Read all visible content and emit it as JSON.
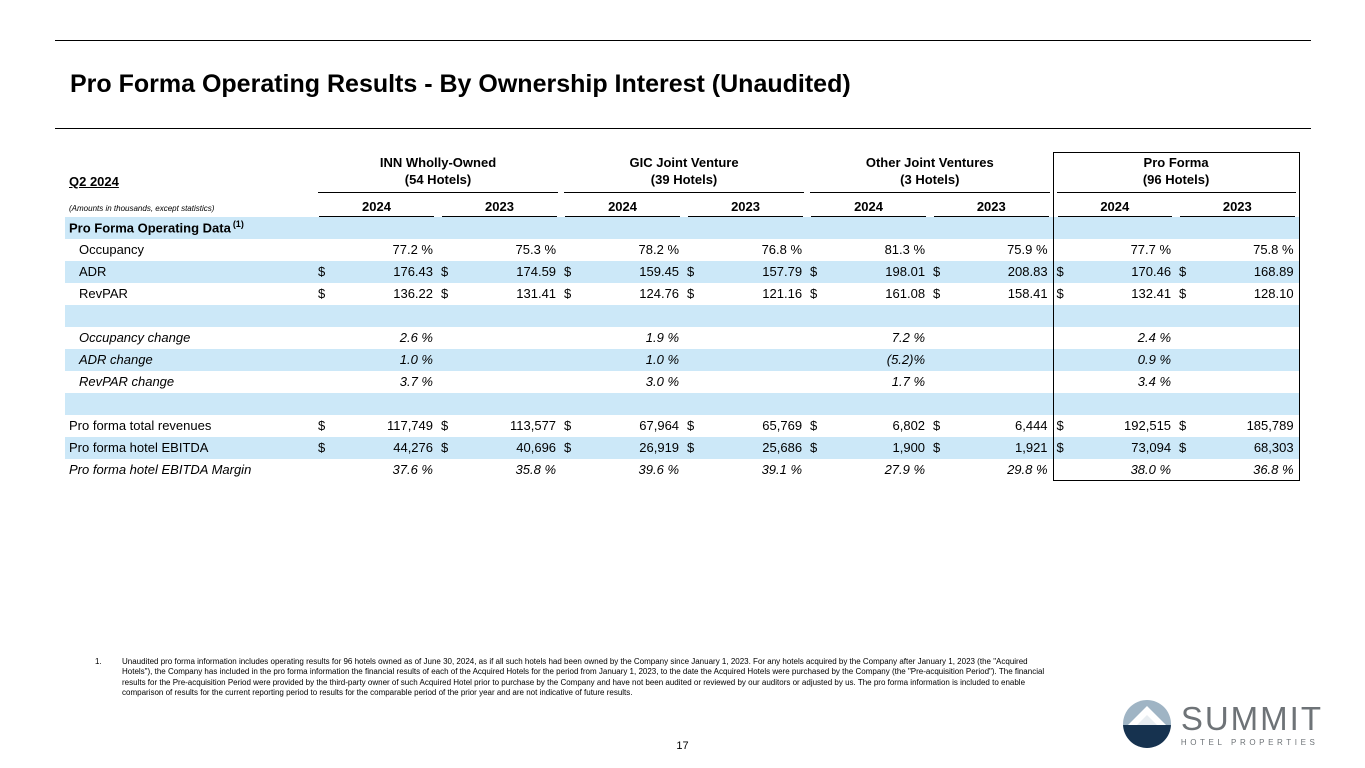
{
  "page": {
    "title": "Pro Forma Operating Results - By Ownership Interest (Unaudited)",
    "page_number": "17"
  },
  "table": {
    "period_label": "Q2 2024",
    "amounts_note": "(Amounts in thousands, except statistics)",
    "groups": [
      {
        "name": "INN Wholly-Owned",
        "hotels": "(54 Hotels)"
      },
      {
        "name": "GIC Joint Venture",
        "hotels": "(39 Hotels)"
      },
      {
        "name": "Other Joint Ventures",
        "hotels": "(3 Hotels)"
      },
      {
        "name": "Pro Forma",
        "hotels": "(96 Hotels)"
      }
    ],
    "years": [
      "2024",
      "2023",
      "2024",
      "2023",
      "2024",
      "2023",
      "2024",
      "2023"
    ],
    "shaded_row_color": "#cce8f8",
    "rows": [
      {
        "label": "Pro Forma Operating Data",
        "sup": "(1)",
        "bold": true,
        "shaded": true,
        "cells": [
          [
            "",
            ""
          ],
          [
            "",
            ""
          ],
          [
            "",
            ""
          ],
          [
            "",
            ""
          ],
          [
            "",
            ""
          ],
          [
            "",
            ""
          ],
          [
            "",
            ""
          ],
          [
            "",
            ""
          ]
        ]
      },
      {
        "label": "Occupancy",
        "indent": true,
        "shaded": false,
        "cells": [
          [
            "",
            "77.2 %"
          ],
          [
            "",
            "75.3 %"
          ],
          [
            "",
            "78.2 %"
          ],
          [
            "",
            "76.8 %"
          ],
          [
            "",
            "81.3 %"
          ],
          [
            "",
            "75.9 %"
          ],
          [
            "",
            "77.7 %"
          ],
          [
            "",
            "75.8 %"
          ]
        ]
      },
      {
        "label": "ADR",
        "indent": true,
        "shaded": true,
        "cells": [
          [
            "$",
            "176.43"
          ],
          [
            "$",
            "174.59"
          ],
          [
            "$",
            "159.45"
          ],
          [
            "$",
            "157.79"
          ],
          [
            "$",
            "198.01"
          ],
          [
            "$",
            "208.83"
          ],
          [
            "$",
            "170.46"
          ],
          [
            "$",
            "168.89"
          ]
        ]
      },
      {
        "label": "RevPAR",
        "indent": true,
        "shaded": false,
        "cells": [
          [
            "$",
            "136.22"
          ],
          [
            "$",
            "131.41"
          ],
          [
            "$",
            "124.76"
          ],
          [
            "$",
            "121.16"
          ],
          [
            "$",
            "161.08"
          ],
          [
            "$",
            "158.41"
          ],
          [
            "$",
            "132.41"
          ],
          [
            "$",
            "128.10"
          ]
        ]
      },
      {
        "label": "",
        "shaded": true,
        "cells": [
          [
            "",
            ""
          ],
          [
            "",
            ""
          ],
          [
            "",
            ""
          ],
          [
            "",
            ""
          ],
          [
            "",
            ""
          ],
          [
            "",
            ""
          ],
          [
            "",
            ""
          ],
          [
            "",
            ""
          ]
        ]
      },
      {
        "label": "Occupancy change",
        "indent": true,
        "italic": true,
        "shaded": false,
        "cells": [
          [
            "",
            "2.6 %"
          ],
          [
            "",
            ""
          ],
          [
            "",
            "1.9 %"
          ],
          [
            "",
            ""
          ],
          [
            "",
            "7.2 %"
          ],
          [
            "",
            ""
          ],
          [
            "",
            "2.4 %"
          ],
          [
            "",
            ""
          ]
        ]
      },
      {
        "label": "ADR change",
        "indent": true,
        "italic": true,
        "shaded": true,
        "cells": [
          [
            "",
            "1.0 %"
          ],
          [
            "",
            ""
          ],
          [
            "",
            "1.0 %"
          ],
          [
            "",
            ""
          ],
          [
            "",
            "(5.2)%"
          ],
          [
            "",
            ""
          ],
          [
            "",
            "0.9 %"
          ],
          [
            "",
            ""
          ]
        ]
      },
      {
        "label": "RevPAR change",
        "indent": true,
        "italic": true,
        "shaded": false,
        "cells": [
          [
            "",
            "3.7 %"
          ],
          [
            "",
            ""
          ],
          [
            "",
            "3.0 %"
          ],
          [
            "",
            ""
          ],
          [
            "",
            "1.7 %"
          ],
          [
            "",
            ""
          ],
          [
            "",
            "3.4 %"
          ],
          [
            "",
            ""
          ]
        ]
      },
      {
        "label": "",
        "shaded": true,
        "cells": [
          [
            "",
            ""
          ],
          [
            "",
            ""
          ],
          [
            "",
            ""
          ],
          [
            "",
            ""
          ],
          [
            "",
            ""
          ],
          [
            "",
            ""
          ],
          [
            "",
            ""
          ],
          [
            "",
            ""
          ]
        ]
      },
      {
        "label": "Pro forma total revenues",
        "shaded": false,
        "cells": [
          [
            "$",
            "117,749"
          ],
          [
            "$",
            "113,577"
          ],
          [
            "$",
            "67,964"
          ],
          [
            "$",
            "65,769"
          ],
          [
            "$",
            "6,802"
          ],
          [
            "$",
            "6,444"
          ],
          [
            "$",
            "192,515"
          ],
          [
            "$",
            "185,789"
          ]
        ]
      },
      {
        "label": "Pro forma hotel EBITDA",
        "shaded": true,
        "cells": [
          [
            "$",
            "44,276"
          ],
          [
            "$",
            "40,696"
          ],
          [
            "$",
            "26,919"
          ],
          [
            "$",
            "25,686"
          ],
          [
            "$",
            "1,900"
          ],
          [
            "$",
            "1,921"
          ],
          [
            "$",
            "73,094"
          ],
          [
            "$",
            "68,303"
          ]
        ]
      },
      {
        "label": "Pro forma hotel EBITDA Margin",
        "italic": true,
        "shaded": false,
        "cells": [
          [
            "",
            "37.6 %"
          ],
          [
            "",
            "35.8 %"
          ],
          [
            "",
            "39.6 %"
          ],
          [
            "",
            "39.1 %"
          ],
          [
            "",
            "27.9 %"
          ],
          [
            "",
            "29.8 %"
          ],
          [
            "",
            "38.0 %"
          ],
          [
            "",
            "36.8 %"
          ]
        ]
      }
    ]
  },
  "footnote": {
    "number": "1.",
    "text": "Unaudited pro forma information includes operating results for 96 hotels owned as of June 30, 2024, as if all such hotels had been owned by the Company since January 1, 2023. For any hotels acquired by the Company after January 1, 2023 (the \"Acquired Hotels\"), the Company has included in the pro forma information the financial results of each of the Acquired Hotels for the period from January 1, 2023, to the date the Acquired Hotels were purchased by the Company (the \"Pre-acquisition Period\"). The financial results for the Pre-acquisition Period were provided by the third-party owner of such Acquired Hotel prior to purchase by the Company and have not been audited or reviewed by our auditors or adjusted by us. The pro forma information is included to enable comparison of results for the current reporting period to results for the comparable period of the prior year and are not indicative of future results."
  },
  "logo": {
    "name": "SUMMIT",
    "subtitle": "HOTEL PROPERTIES",
    "text_color": "#6e7377",
    "icon_sky_color": "#9fb4c4",
    "icon_base_color": "#16324f"
  }
}
